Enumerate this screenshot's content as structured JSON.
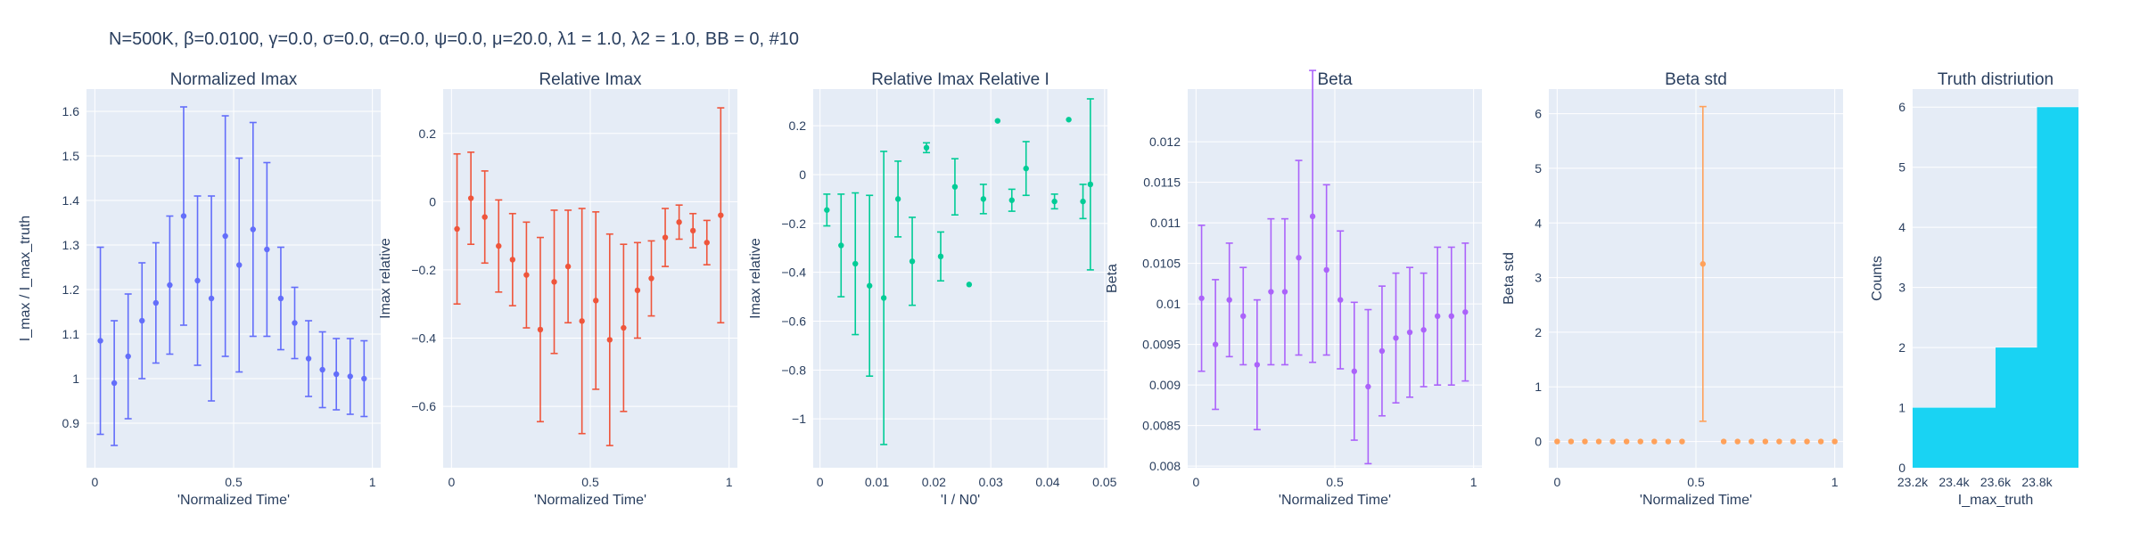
{
  "suptitle": "N=500K, β=0.0100, γ=0.0, σ=0.0,  α=0.0, ψ=0.0, μ=20.0, λ1 = 1.0, λ2 = 1.0, BB = 0, #10",
  "style": {
    "plot_bg": "#e5ecf6",
    "grid": "#ffffff",
    "text": "#2a3f5f"
  },
  "chart_data": [
    {
      "id": "p1",
      "type": "scatter",
      "title": "Normalized Imax",
      "xlabel": "'Normalized Time'",
      "ylabel": "I_max / I_max_truth",
      "xlim": [
        -0.03,
        1.03
      ],
      "ylim": [
        0.8,
        1.65
      ],
      "xticks": [
        0,
        0.5,
        1
      ],
      "xtick_labels": [
        "0",
        "0.5",
        "1"
      ],
      "yticks": [
        0.9,
        1,
        1.1,
        1.2,
        1.3,
        1.4,
        1.5,
        1.6
      ],
      "ytick_labels": [
        "0.9",
        "1",
        "1.1",
        "1.2",
        "1.3",
        "1.4",
        "1.5",
        "1.6"
      ],
      "color": "#636efa",
      "x": [
        0.02,
        0.07,
        0.12,
        0.17,
        0.22,
        0.27,
        0.32,
        0.37,
        0.42,
        0.47,
        0.52,
        0.57,
        0.62,
        0.67,
        0.72,
        0.77,
        0.82,
        0.87,
        0.92,
        0.97
      ],
      "y": [
        1.085,
        0.99,
        1.05,
        1.13,
        1.17,
        1.21,
        1.365,
        1.22,
        1.18,
        1.32,
        1.255,
        1.335,
        1.29,
        1.18,
        1.125,
        1.045,
        1.02,
        1.01,
        1.005,
        1.0
      ],
      "err": [
        0.21,
        0.14,
        0.14,
        0.13,
        0.135,
        0.155,
        0.245,
        0.19,
        0.23,
        0.27,
        0.24,
        0.24,
        0.195,
        0.115,
        0.08,
        0.085,
        0.085,
        0.08,
        0.085,
        0.085
      ]
    },
    {
      "id": "p2",
      "type": "scatter",
      "title": "Relative Imax",
      "xlabel": "'Normalized Time'",
      "ylabel": "Imax relative",
      "xlim": [
        -0.03,
        1.03
      ],
      "ylim": [
        -0.78,
        0.33
      ],
      "xticks": [
        0,
        0.5,
        1
      ],
      "xtick_labels": [
        "0",
        "0.5",
        "1"
      ],
      "yticks": [
        -0.6,
        -0.4,
        -0.2,
        0,
        0.2
      ],
      "ytick_labels": [
        "−0.6",
        "−0.4",
        "−0.2",
        "0",
        "0.2"
      ],
      "color": "#ef553b",
      "x": [
        0.02,
        0.07,
        0.12,
        0.17,
        0.22,
        0.27,
        0.32,
        0.37,
        0.42,
        0.47,
        0.52,
        0.57,
        0.62,
        0.67,
        0.72,
        0.77,
        0.82,
        0.87,
        0.92,
        0.97
      ],
      "y": [
        -0.08,
        0.01,
        -0.045,
        -0.13,
        -0.17,
        -0.215,
        -0.375,
        -0.235,
        -0.19,
        -0.35,
        -0.29,
        -0.405,
        -0.37,
        -0.26,
        -0.225,
        -0.105,
        -0.06,
        -0.085,
        -0.12,
        -0.04
      ],
      "err": [
        0.22,
        0.135,
        0.135,
        0.135,
        0.135,
        0.155,
        0.27,
        0.21,
        0.165,
        0.33,
        0.26,
        0.31,
        0.245,
        0.14,
        0.11,
        0.085,
        0.05,
        0.05,
        0.065,
        0.315
      ]
    },
    {
      "id": "p3",
      "type": "scatter",
      "title": "Relative Imax Relative I",
      "xlabel": "'I / N0'",
      "ylabel": "Imax relative",
      "xlim": [
        -0.0012,
        0.0505
      ],
      "ylim": [
        -1.2,
        0.35
      ],
      "xticks": [
        0,
        0.01,
        0.02,
        0.03,
        0.04,
        0.05
      ],
      "xtick_labels": [
        "0",
        "0.01",
        "0.02",
        "0.03",
        "0.04",
        "0.05"
      ],
      "yticks": [
        -1,
        -0.8,
        -0.6,
        -0.4,
        -0.2,
        0,
        0.2
      ],
      "ytick_labels": [
        "−1",
        "−0.8",
        "−0.6",
        "−0.4",
        "−0.2",
        "0",
        "0.2"
      ],
      "color": "#00cc96",
      "x": [
        0.0012,
        0.0037,
        0.0062,
        0.0087,
        0.0112,
        0.0137,
        0.0162,
        0.0187,
        0.0212,
        0.0237,
        0.0262,
        0.0287,
        0.0312,
        0.0337,
        0.0362,
        0.0412,
        0.0437,
        0.0462,
        0.0475,
        0.0499
      ],
      "y": [
        -0.145,
        -0.29,
        -0.365,
        -0.455,
        -0.505,
        -0.1,
        -0.355,
        0.11,
        -0.335,
        -0.05,
        -0.45,
        -0.1,
        0.22,
        -0.105,
        0.025,
        -0.11,
        0.225,
        -0.11,
        -0.04,
        0.0
      ],
      "err": [
        0.065,
        0.21,
        0.29,
        0.37,
        0.6,
        0.155,
        0.18,
        0.02,
        0.1,
        0.115,
        0.0,
        0.06,
        0.0,
        0.045,
        0.11,
        0.03,
        0.0,
        0.07,
        0.35,
        0.0
      ],
      "hidden_last": true
    },
    {
      "id": "p4",
      "type": "scatter",
      "title": "Beta",
      "xlabel": "'Normalized Time'",
      "ylabel": "Beta",
      "xlim": [
        -0.03,
        1.03
      ],
      "ylim": [
        0.00798,
        0.01265
      ],
      "xticks": [
        0,
        0.5,
        1
      ],
      "xtick_labels": [
        "0",
        "0.5",
        "1"
      ],
      "yticks": [
        0.008,
        0.0085,
        0.009,
        0.0095,
        0.01,
        0.0105,
        0.011,
        0.0115,
        0.012
      ],
      "ytick_labels": [
        "0.008",
        "0.0085",
        "0.009",
        "0.0095",
        "0.01",
        "0.0105",
        "0.011",
        "0.0115",
        "0.012"
      ],
      "color": "#ab63fa",
      "x": [
        0.02,
        0.07,
        0.12,
        0.17,
        0.22,
        0.27,
        0.32,
        0.37,
        0.42,
        0.47,
        0.52,
        0.57,
        0.62,
        0.67,
        0.72,
        0.77,
        0.82,
        0.87,
        0.92,
        0.97
      ],
      "y": [
        0.01007,
        0.0095,
        0.01005,
        0.00985,
        0.00925,
        0.01015,
        0.01015,
        0.01057,
        0.01108,
        0.01042,
        0.01005,
        0.00917,
        0.00898,
        0.00942,
        0.00958,
        0.00965,
        0.00968,
        0.00985,
        0.00985,
        0.0099
      ],
      "err": [
        0.0009,
        0.0008,
        0.0007,
        0.0006,
        0.0008,
        0.0009,
        0.0009,
        0.0012,
        0.0018,
        0.00105,
        0.00085,
        0.00085,
        0.00095,
        0.0008,
        0.0008,
        0.0008,
        0.0007,
        0.00085,
        0.00085,
        0.00085
      ]
    },
    {
      "id": "p5",
      "type": "scatter",
      "title": "Beta std",
      "xlabel": "'Normalized Time'",
      "ylabel": "Beta std",
      "xlim": [
        -0.03,
        1.03
      ],
      "ylim": [
        -0.48,
        6.45
      ],
      "xticks": [
        0,
        0.5,
        1
      ],
      "xtick_labels": [
        "0",
        "0.5",
        "1"
      ],
      "yticks": [
        0,
        1,
        2,
        3,
        4,
        5,
        6
      ],
      "ytick_labels": [
        "0",
        "1",
        "2",
        "3",
        "4",
        "5",
        "6"
      ],
      "color": "#ffa15a",
      "x": [
        0.0,
        0.05,
        0.1,
        0.15,
        0.2,
        0.25,
        0.3,
        0.35,
        0.4,
        0.45,
        0.525,
        0.6,
        0.65,
        0.7,
        0.75,
        0.8,
        0.85,
        0.9,
        0.95,
        1.0
      ],
      "y": [
        0,
        0,
        0,
        0,
        0,
        0,
        0,
        0,
        0,
        0,
        3.25,
        0,
        0,
        0,
        0,
        0,
        0,
        0,
        0,
        0
      ],
      "err": [
        0,
        0,
        0,
        0,
        0,
        0,
        0,
        0,
        0,
        0,
        2.88,
        0,
        0,
        0,
        0,
        0,
        0,
        0,
        0,
        0
      ]
    },
    {
      "id": "p6",
      "type": "bar",
      "title": "Truth distriution",
      "xlabel": "I_max_truth",
      "ylabel": "Counts",
      "xlim": [
        23200,
        24000
      ],
      "ylim": [
        0,
        6.3
      ],
      "xticks": [
        23200,
        23400,
        23600,
        23800
      ],
      "xtick_labels": [
        "23.2k",
        "23.4k",
        "23.6k",
        "23.8k"
      ],
      "yticks": [
        0,
        1,
        2,
        3,
        4,
        5,
        6
      ],
      "ytick_labels": [
        "0",
        "1",
        "2",
        "3",
        "4",
        "5",
        "6"
      ],
      "color": "#19d3f3",
      "bins": [
        {
          "x0": 23200,
          "x1": 23600,
          "count": 1
        },
        {
          "x0": 23600,
          "x1": 23800,
          "count": 2
        },
        {
          "x0": 23800,
          "x1": 24000,
          "count": 6
        }
      ]
    }
  ]
}
